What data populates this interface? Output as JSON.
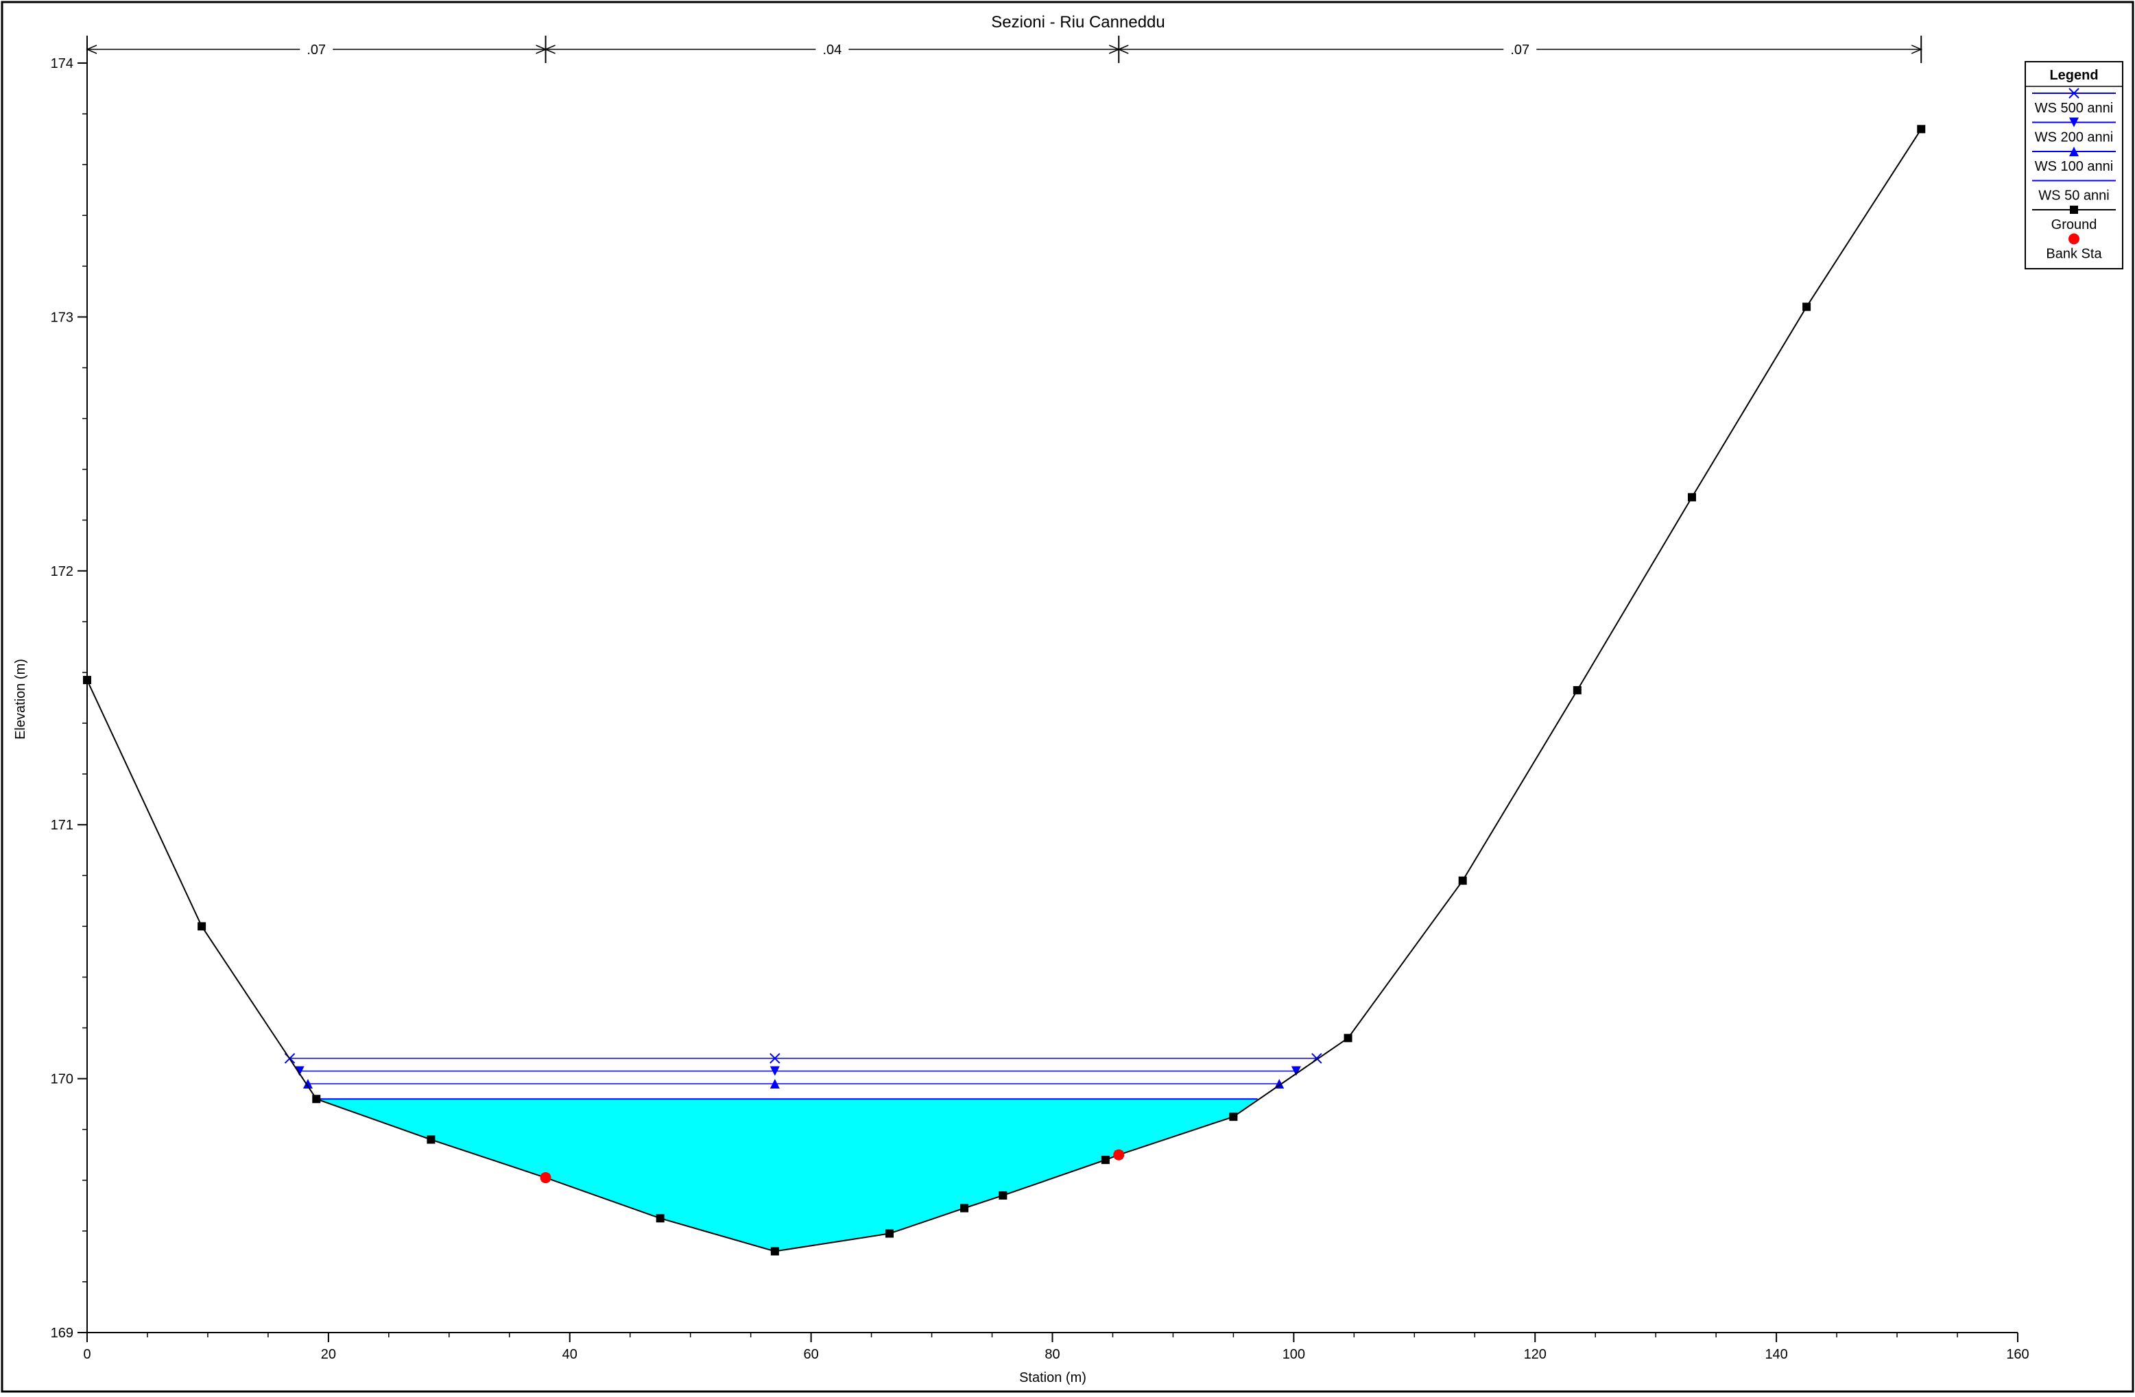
{
  "chart_data": {
    "type": "line",
    "title": "Sezioni - Riu Canneddu",
    "xlabel": "Station (m)",
    "ylabel": "Elevation (m)",
    "xlim": [
      0,
      160
    ],
    "ylim": [
      169,
      174
    ],
    "x_ticks": [
      0,
      20,
      40,
      60,
      80,
      100,
      120,
      140,
      160
    ],
    "y_ticks": [
      169,
      170,
      171,
      172,
      173,
      174
    ],
    "grid": false,
    "legend_position": "top-right",
    "legend_title": "Legend",
    "colors": {
      "ws": "#0000ff",
      "ground": "#000000",
      "bank": "#ff0000",
      "water_fill": "#00ffff"
    },
    "manning_n": {
      "breaks": [
        0,
        38,
        85.5,
        152
      ],
      "labels": [
        ".07",
        ".04",
        ".07"
      ]
    },
    "ground": {
      "name": "Ground",
      "x": [
        0,
        9.5,
        19,
        28.5,
        38,
        47.5,
        57,
        66.5,
        72.7,
        75.9,
        84.4,
        85.5,
        95,
        104.5,
        114,
        123.5,
        133,
        142.5,
        152
      ],
      "y": [
        171.57,
        170.6,
        169.92,
        169.76,
        169.61,
        169.45,
        169.32,
        169.39,
        169.49,
        169.54,
        169.68,
        169.7,
        169.85,
        170.16,
        170.78,
        171.53,
        172.29,
        173.04,
        173.74
      ]
    },
    "bank_stations": {
      "name": "Bank Sta",
      "x": [
        38,
        85.5
      ],
      "y": [
        169.61,
        169.7
      ]
    },
    "water_surfaces": [
      {
        "name": "WS 500 anni",
        "marker": "x",
        "elevation": 170.08,
        "left_x": 16.8,
        "right_x": 101.9,
        "mid_x": 57
      },
      {
        "name": "WS 200 anni",
        "marker": "triangle-down",
        "elevation": 170.03,
        "left_x": 17.6,
        "right_x": 100.2,
        "mid_x": 57
      },
      {
        "name": "WS 100 anni",
        "marker": "triangle-up",
        "elevation": 169.98,
        "left_x": 18.3,
        "right_x": 98.8,
        "mid_x": 57
      },
      {
        "name": "WS 50 anni",
        "marker": "none",
        "elevation": 169.92,
        "left_x": 19,
        "right_x": 97,
        "mid_x": 57,
        "filled": true
      }
    ]
  }
}
